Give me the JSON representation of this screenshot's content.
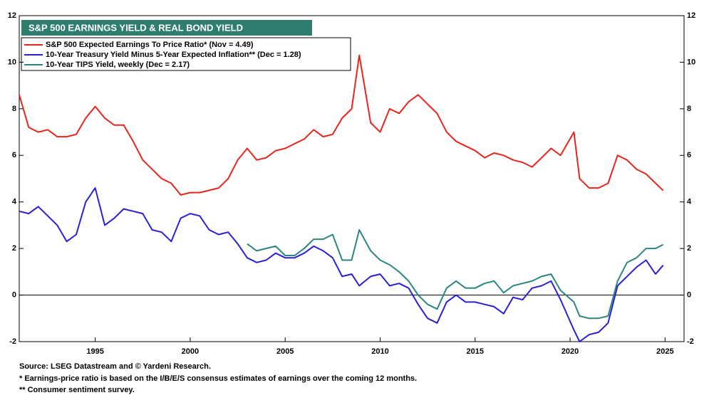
{
  "chart_data": {
    "type": "line",
    "title": "S&P 500 EARNINGS YIELD &  REAL BOND YIELD",
    "x": [
      1991,
      1991.5,
      1992,
      1992.5,
      1993,
      1993.5,
      1994,
      1994.5,
      1995,
      1995.5,
      1996,
      1996.5,
      1997,
      1997.5,
      1998,
      1998.5,
      1999,
      1999.5,
      2000,
      2000.5,
      2001,
      2001.5,
      2002,
      2002.5,
      2003,
      2003.5,
      2004,
      2004.5,
      2005,
      2005.5,
      2006,
      2006.5,
      2007,
      2007.5,
      2008,
      2008.5,
      2008.9,
      2009.5,
      2010,
      2010.5,
      2011,
      2011.5,
      2012,
      2012.5,
      2013,
      2013.5,
      2014,
      2014.5,
      2015,
      2015.5,
      2016,
      2016.5,
      2017,
      2017.5,
      2018,
      2018.5,
      2019,
      2019.5,
      2020.2,
      2020.5,
      2021,
      2021.5,
      2022,
      2022.5,
      2023,
      2023.5,
      2024,
      2024.5,
      2024.9
    ],
    "series": [
      {
        "name": "S&P 500 Expected Earnings To Price Ratio* (Nov = 4.49)",
        "color": "#e8241c",
        "values": [
          8.6,
          7.2,
          7.0,
          7.1,
          6.8,
          6.8,
          6.9,
          7.6,
          8.1,
          7.6,
          7.3,
          7.3,
          6.6,
          5.8,
          5.4,
          5.0,
          4.8,
          4.3,
          4.4,
          4.4,
          4.5,
          4.6,
          5.0,
          5.8,
          6.3,
          5.8,
          5.9,
          6.2,
          6.3,
          6.5,
          6.7,
          7.1,
          6.8,
          6.9,
          7.6,
          8.0,
          10.3,
          7.4,
          7.0,
          8.0,
          7.8,
          8.3,
          8.6,
          8.2,
          7.8,
          7.0,
          6.6,
          6.4,
          6.2,
          5.9,
          6.1,
          6.0,
          5.8,
          5.7,
          5.5,
          5.9,
          6.3,
          6.0,
          7.0,
          5.0,
          4.6,
          4.6,
          4.8,
          6.0,
          5.8,
          5.4,
          5.2,
          4.8,
          4.49
        ]
      },
      {
        "name": "10-Year Treasury Yield Minus 5-Year Expected Inflation** (Dec = 1.28)",
        "color": "#2a1fd6",
        "values": [
          3.6,
          3.5,
          3.8,
          3.4,
          3.0,
          2.3,
          2.6,
          4.0,
          4.6,
          3.0,
          3.3,
          3.7,
          3.6,
          3.5,
          2.8,
          2.7,
          2.3,
          3.3,
          3.5,
          3.4,
          2.8,
          2.6,
          2.7,
          2.2,
          1.6,
          1.4,
          1.5,
          1.8,
          1.6,
          1.6,
          1.8,
          2.1,
          1.9,
          1.6,
          0.8,
          0.9,
          0.4,
          0.8,
          0.9,
          0.4,
          0.5,
          0.3,
          -0.4,
          -1.0,
          -1.2,
          -0.3,
          0.0,
          -0.3,
          -0.3,
          -0.4,
          -0.5,
          -0.8,
          -0.1,
          -0.2,
          0.3,
          0.4,
          0.6,
          -0.2,
          -1.5,
          -2.0,
          -1.7,
          -1.6,
          -1.2,
          0.4,
          0.8,
          1.2,
          1.5,
          0.9,
          1.28
        ]
      },
      {
        "name": "10-Year TIPS Yield, weekly (Dec = 2.17)",
        "color": "#2b8580",
        "values": [
          null,
          null,
          null,
          null,
          null,
          null,
          null,
          null,
          null,
          null,
          null,
          null,
          null,
          null,
          null,
          null,
          null,
          null,
          null,
          null,
          null,
          null,
          null,
          null,
          2.2,
          1.9,
          2.0,
          2.1,
          1.7,
          1.7,
          2.0,
          2.4,
          2.4,
          2.6,
          1.5,
          1.5,
          2.8,
          1.9,
          1.5,
          1.3,
          1.0,
          0.6,
          0.0,
          -0.4,
          -0.6,
          0.3,
          0.6,
          0.3,
          0.3,
          0.5,
          0.6,
          0.1,
          0.4,
          0.5,
          0.6,
          0.8,
          0.9,
          0.2,
          -0.3,
          -0.9,
          -1.0,
          -1.0,
          -0.9,
          0.6,
          1.4,
          1.6,
          2.0,
          2.0,
          2.17
        ]
      }
    ],
    "xlim": [
      1991,
      2026
    ],
    "xticks": [
      1995,
      2000,
      2005,
      2010,
      2015,
      2020,
      2025
    ],
    "ylim": [
      -2,
      12
    ],
    "yticks": [
      -2,
      0,
      2,
      4,
      6,
      8,
      10,
      12
    ],
    "right_axis": true,
    "reference_line": 0,
    "title_color": "#2e7d6e",
    "notes": [
      "Source: LSEG Datastream and © Yardeni Research.",
      "* Earnings-price ratio is based on the I/B/E/S consensus estimates of earnings over the coming 12 months.",
      "** Consumer sentiment survey."
    ]
  }
}
